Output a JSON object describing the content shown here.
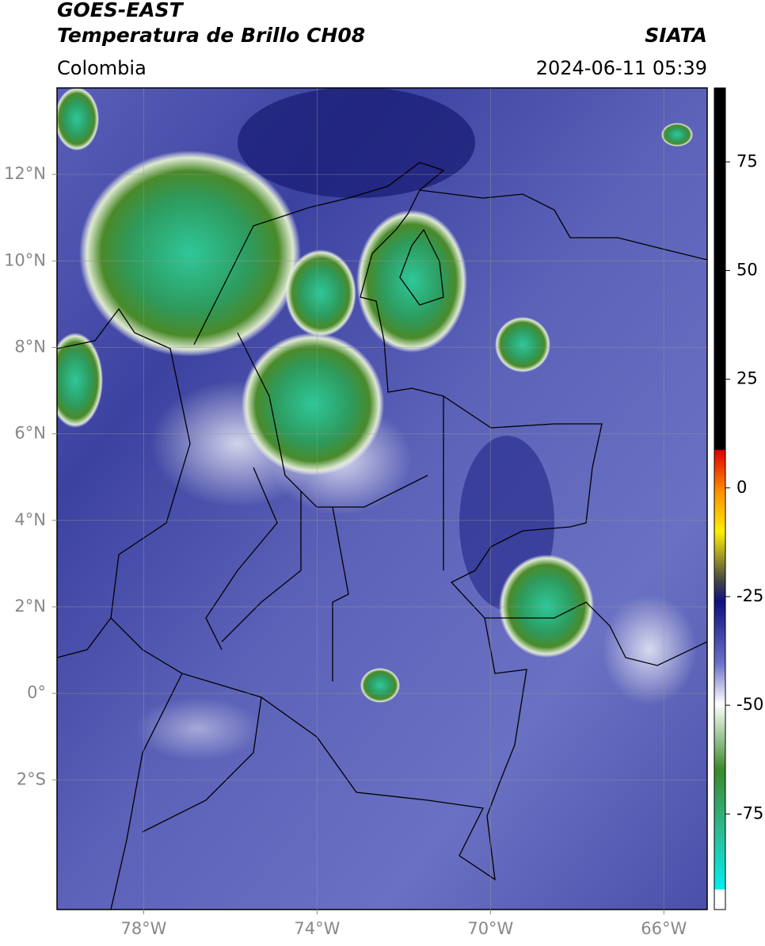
{
  "header": {
    "title": "GOES-EAST",
    "subtitle": "Temperatura de Brillo CH08",
    "source": "SIATA",
    "region": "Colombia",
    "datetime": "2024-06-11 05:39"
  },
  "map": {
    "xlim": [
      -80,
      -65
    ],
    "ylim": [
      -5,
      14
    ],
    "xticks": [
      {
        "value": -78,
        "label": "78°W"
      },
      {
        "value": -74,
        "label": "74°W"
      },
      {
        "value": -70,
        "label": "70°W"
      },
      {
        "value": -66,
        "label": "66°W"
      }
    ],
    "yticks": [
      {
        "value": 12,
        "label": "12°N"
      },
      {
        "value": 10,
        "label": "10°N"
      },
      {
        "value": 8,
        "label": "8°N"
      },
      {
        "value": 6,
        "label": "6°N"
      },
      {
        "value": 4,
        "label": "4°N"
      },
      {
        "value": 2,
        "label": "2°N"
      },
      {
        "value": 0,
        "label": "0°"
      },
      {
        "value": -2,
        "label": "2°S"
      }
    ]
  },
  "colorbar": {
    "lim": [
      -97,
      92
    ],
    "ticks": [
      75,
      50,
      25,
      0,
      -25,
      -50,
      -75
    ]
  }
}
